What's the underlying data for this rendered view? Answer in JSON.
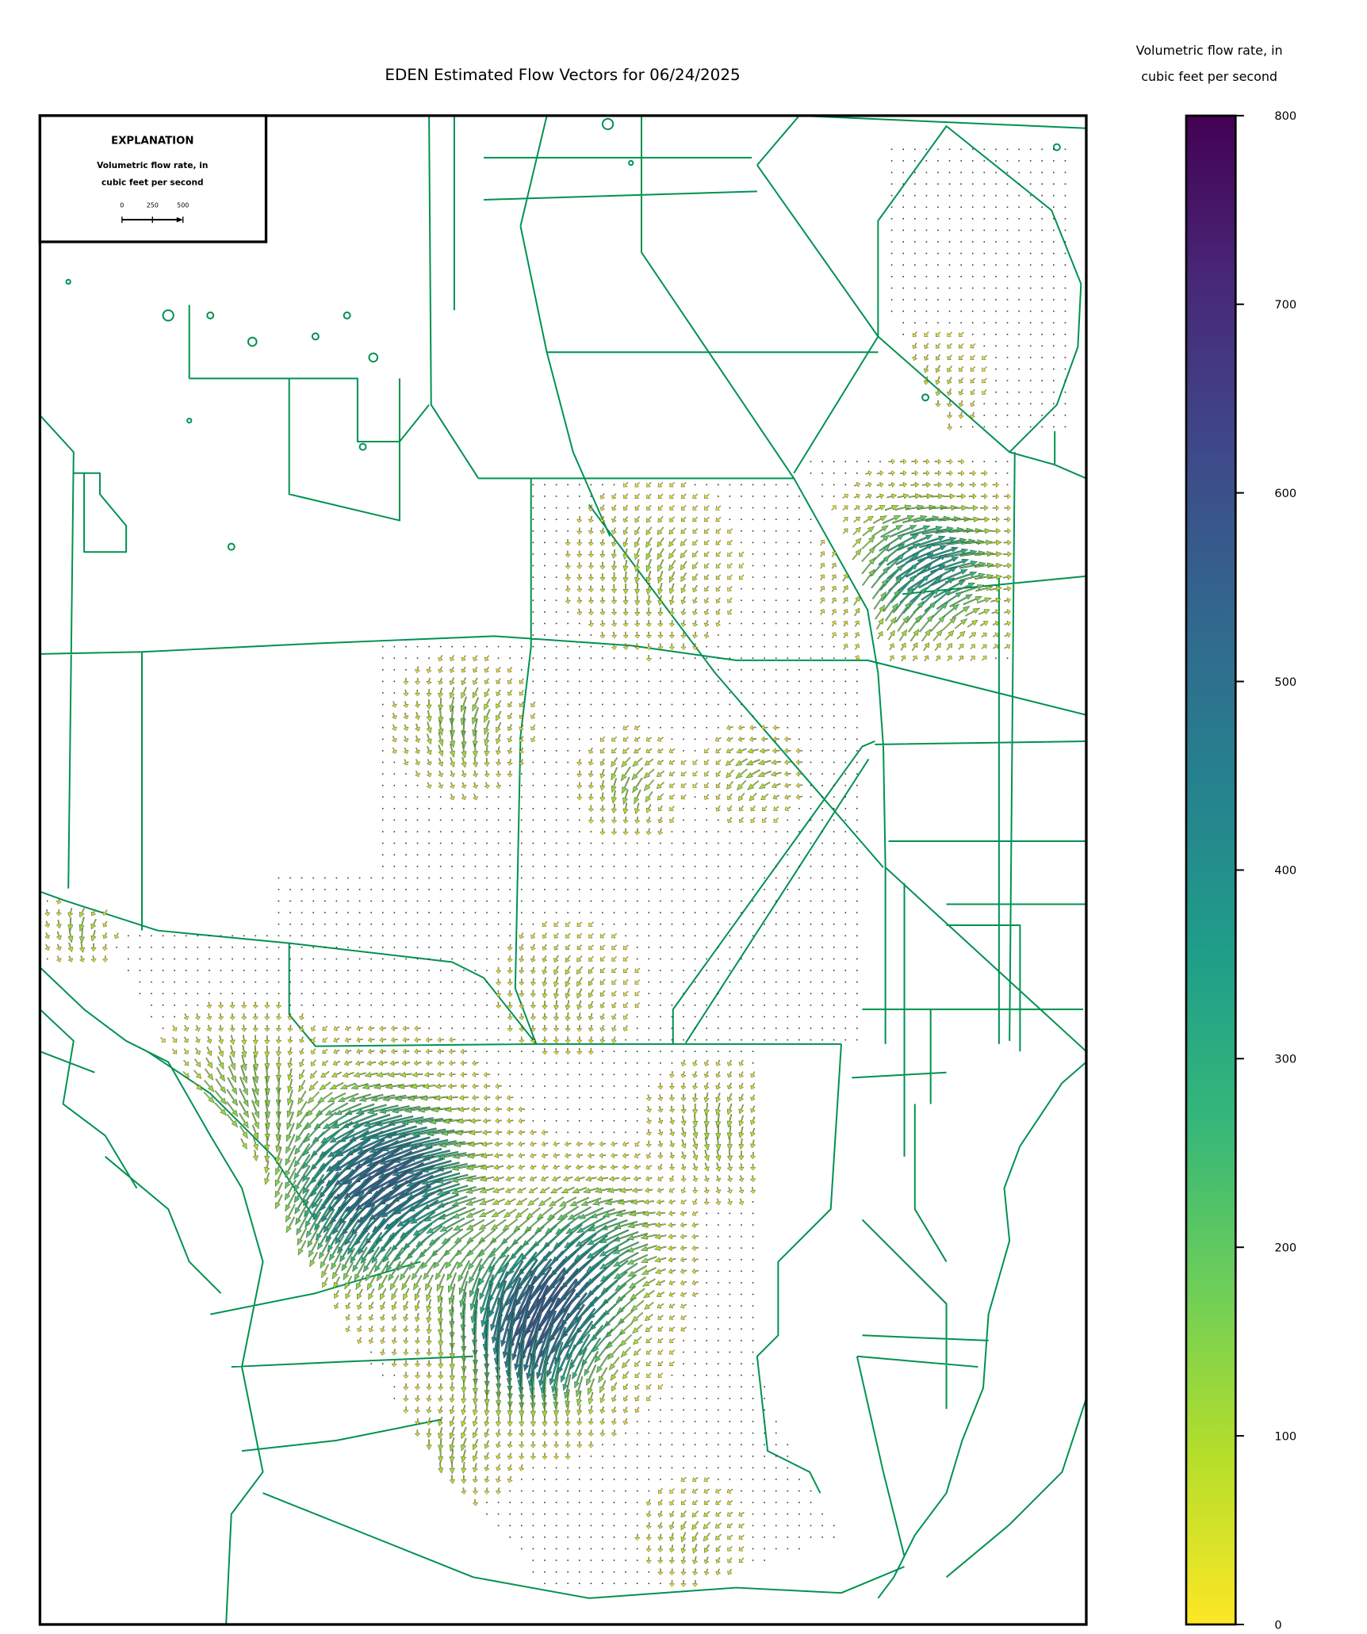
{
  "chart_data": {
    "type": "quiver",
    "title": "EDEN Estimated Flow Vectors for 06/24/2025",
    "colorbar": {
      "title": [
        "Volumetric flow rate, in",
        "cubic feet per second"
      ],
      "clim": [
        0,
        800
      ],
      "ticks": [
        0,
        100,
        200,
        300,
        400,
        500,
        600,
        700,
        800
      ],
      "colormap": "viridis_r"
    },
    "key": {
      "title": "EXPLANATION",
      "label": [
        "Volumetric flow rate, in",
        "cubic feet per second"
      ],
      "ticks": [
        0,
        250,
        500
      ]
    },
    "line_color": "#009150"
  }
}
